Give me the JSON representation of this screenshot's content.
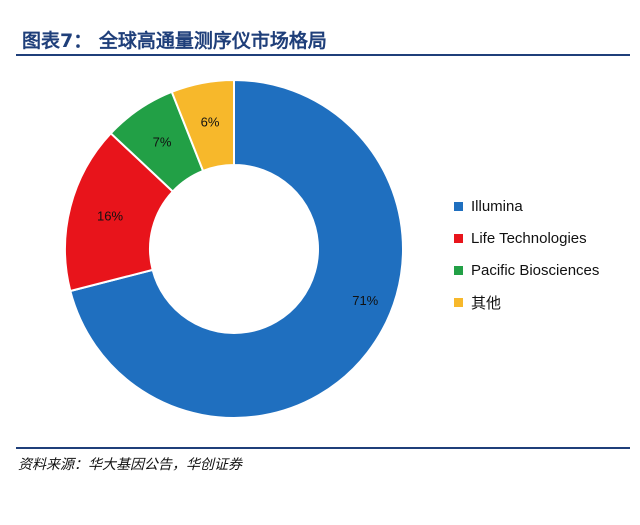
{
  "header": {
    "title": "图表7： 全球高通量测序仪市场格局"
  },
  "footer": {
    "source": "资料来源：华大基因公告，华创证券"
  },
  "chart_data": {
    "type": "pie",
    "style": "donut",
    "categories": [
      "Illumina",
      "Life Technologies",
      "Pacific Biosciences",
      "其他"
    ],
    "values": [
      71,
      16,
      7,
      6
    ],
    "labels": [
      "71%",
      "16%",
      "7%",
      "6%"
    ],
    "colors": [
      "#1f6fbf",
      "#e8141b",
      "#22a046",
      "#f7b82b"
    ],
    "legend_position": "right"
  }
}
